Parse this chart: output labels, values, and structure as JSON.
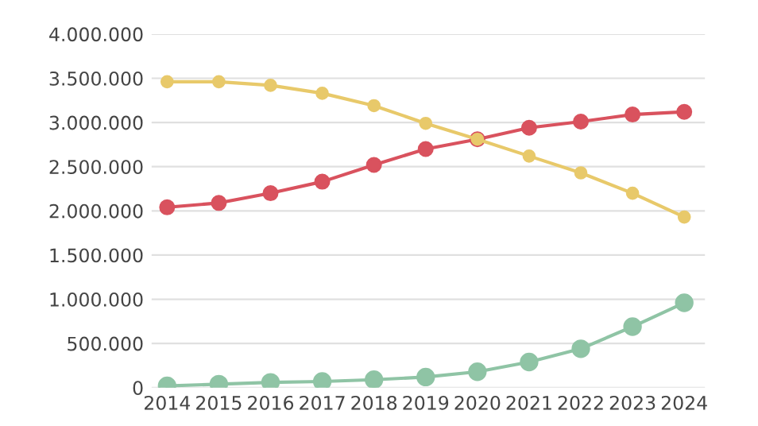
{
  "chart_data": {
    "type": "line",
    "categories": [
      "2014",
      "2015",
      "2016",
      "2017",
      "2018",
      "2019",
      "2020",
      "2021",
      "2022",
      "2023",
      "2024"
    ],
    "series": [
      {
        "color": "#e8c96a",
        "values": [
          3460000,
          3460000,
          3420000,
          3330000,
          3190000,
          2990000,
          2810000,
          2620000,
          2430000,
          2200000,
          1930000
        ]
      },
      {
        "color": "#d9525e",
        "values": [
          2040000,
          2090000,
          2200000,
          2330000,
          2520000,
          2700000,
          2810000,
          2940000,
          3010000,
          3090000,
          3120000
        ]
      },
      {
        "color": "#8fc4a5",
        "values": [
          20000,
          40000,
          60000,
          70000,
          90000,
          120000,
          180000,
          290000,
          440000,
          690000,
          960000
        ]
      }
    ],
    "ylim": [
      0,
      4000000
    ],
    "yticks": [
      {
        "value": 0,
        "label": "0"
      },
      {
        "value": 500000,
        "label": "500.000"
      },
      {
        "value": 1000000,
        "label": "1.000.000"
      },
      {
        "value": 1500000,
        "label": "1.500.000"
      },
      {
        "value": 2000000,
        "label": "2.000.000"
      },
      {
        "value": 2500000,
        "label": "2.500.000"
      },
      {
        "value": 3000000,
        "label": "3.000.000"
      },
      {
        "value": 3500000,
        "label": "3.500.000"
      },
      {
        "value": 4000000,
        "label": "4.000.000"
      }
    ],
    "grid": "y",
    "marker": "circle",
    "line_style": "solid"
  }
}
